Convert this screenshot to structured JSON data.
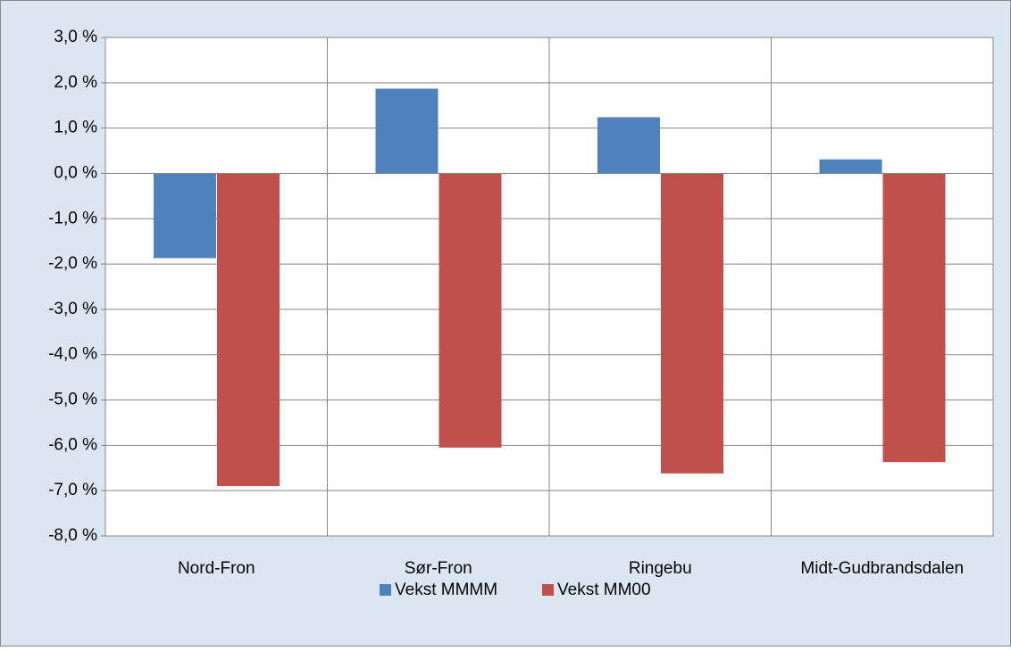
{
  "chart_data": {
    "type": "bar",
    "categories": [
      "Nord-Fron",
      "Sør-Fron",
      "Ringebu",
      "Midt-Gudbrandsdalen"
    ],
    "series": [
      {
        "name": "Vekst MMMM",
        "color": "#4f81bd",
        "values": [
          -1.87,
          1.87,
          1.24,
          0.31
        ]
      },
      {
        "name": "Vekst MM00",
        "color": "#c0504d",
        "values": [
          -6.9,
          -6.05,
          -6.62,
          -6.37
        ]
      }
    ],
    "ylim": [
      -8,
      3
    ],
    "yticks": [
      {
        "value": 3,
        "label": "3,0 %"
      },
      {
        "value": 2,
        "label": "2,0 %"
      },
      {
        "value": 1,
        "label": "1,0 %"
      },
      {
        "value": 0,
        "label": "0,0 %"
      },
      {
        "value": -1,
        "label": "-1,0 %"
      },
      {
        "value": -2,
        "label": "-2,0 %"
      },
      {
        "value": -3,
        "label": "-3,0 %"
      },
      {
        "value": -4,
        "label": "-4,0 %"
      },
      {
        "value": -5,
        "label": "-5,0 %"
      },
      {
        "value": -6,
        "label": "-6,0 %"
      },
      {
        "value": -7,
        "label": "-7,0 %"
      },
      {
        "value": -8,
        "label": "-8,0 %"
      }
    ],
    "grid": true,
    "legend": "bottom"
  }
}
